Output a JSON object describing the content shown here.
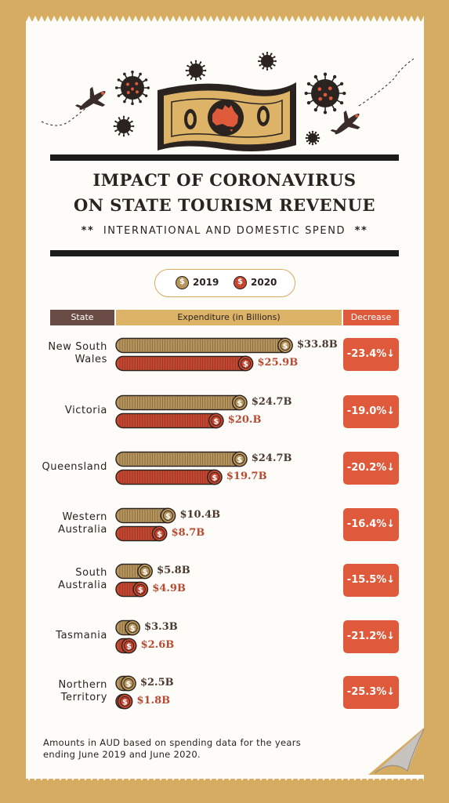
{
  "header": {
    "title_line1": "IMPACT OF CORONAVIRUS",
    "title_line2": "ON STATE TOURISM REVENUE",
    "subtitle": "INTERNATIONAL AND DOMESTIC SPEND",
    "subtitle_marks_left": "**",
    "subtitle_marks_right": "**"
  },
  "legend": {
    "y2019": "2019",
    "y2020": "2020",
    "coin_symbol": "$"
  },
  "table_headers": {
    "state": "State",
    "expenditure": "Expenditure (in Billions)",
    "decrease": "Decrease"
  },
  "colors": {
    "coin2019": "#b8955a",
    "coin2020": "#c8462f",
    "decrease": "#de5a3b",
    "background": "#d6ab62",
    "state_header": "#6a4b45"
  },
  "footnote": "Amounts in AUD based on spending data for the years ending June 2019 and June 2020.",
  "chart_data": {
    "type": "bar",
    "title": "IMPACT OF CORONAVIRUS ON STATE TOURISM REVENUE",
    "subtitle": "INTERNATIONAL AND DOMESTIC SPEND",
    "xlabel": "Expenditure (in Billions)",
    "categories": [
      "New South Wales",
      "Victoria",
      "Queensland",
      "Western Australia",
      "South Australia",
      "Tasmania",
      "Northern Territory"
    ],
    "category_lines": [
      [
        "New South",
        "Wales"
      ],
      [
        "Victoria"
      ],
      [
        "Queensland"
      ],
      [
        "Western",
        "Australia"
      ],
      [
        "South",
        "Australia"
      ],
      [
        "Tasmania"
      ],
      [
        "Northern",
        "Territory"
      ]
    ],
    "series": [
      {
        "name": "2019",
        "values": [
          33.8,
          24.7,
          24.7,
          10.4,
          5.8,
          3.3,
          2.5
        ],
        "labels": [
          "$33.8B",
          "$24.7B",
          "$24.7B",
          "$10.4B",
          "$5.8B",
          "$3.3B",
          "$2.5B"
        ]
      },
      {
        "name": "2020",
        "values": [
          25.9,
          20.0,
          19.7,
          8.7,
          4.9,
          2.6,
          1.8
        ],
        "labels": [
          "$25.9B",
          "$20.B",
          "$19.7B",
          "$8.7B",
          "$4.9B",
          "$2.6B",
          "$1.8B"
        ]
      }
    ],
    "decrease": [
      "-23.4%",
      "-19.0%",
      "-20.2%",
      "-16.4%",
      "-15.5%",
      "-21.2%",
      "-25.3%"
    ],
    "legend_position": "top"
  }
}
